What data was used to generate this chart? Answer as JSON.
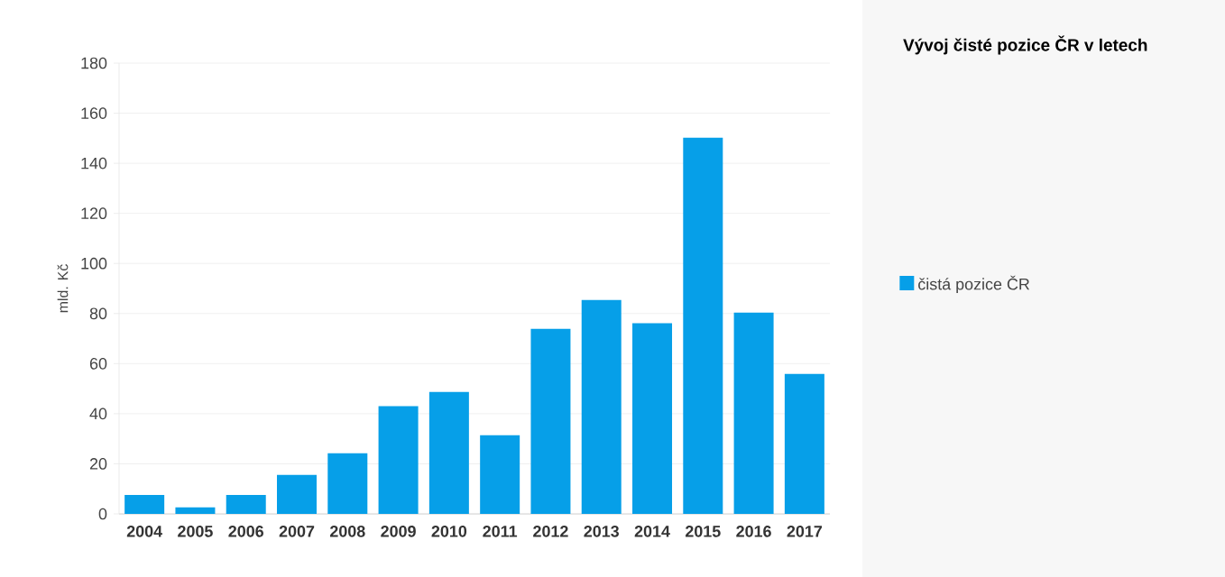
{
  "chart_data": {
    "type": "bar",
    "title": "Vývoj čisté pozice ČR v letech",
    "ylabel": "mld. Kč",
    "categories": [
      "2004",
      "2005",
      "2006",
      "2007",
      "2008",
      "2009",
      "2010",
      "2011",
      "2012",
      "2013",
      "2014",
      "2015",
      "2016",
      "2017"
    ],
    "series": [
      {
        "name": "čistá pozice ČR",
        "color": "#069fe8",
        "values": [
          7.6,
          2.6,
          7.6,
          15.6,
          24.2,
          43,
          48.7,
          31.4,
          73.9,
          85.4,
          76.1,
          150.2,
          80.4,
          55.9
        ]
      }
    ],
    "ylim": [
      0,
      180
    ],
    "yticks": [
      0,
      20,
      40,
      60,
      80,
      100,
      120,
      140,
      160,
      180
    ],
    "grid": "y",
    "legend": "right"
  }
}
